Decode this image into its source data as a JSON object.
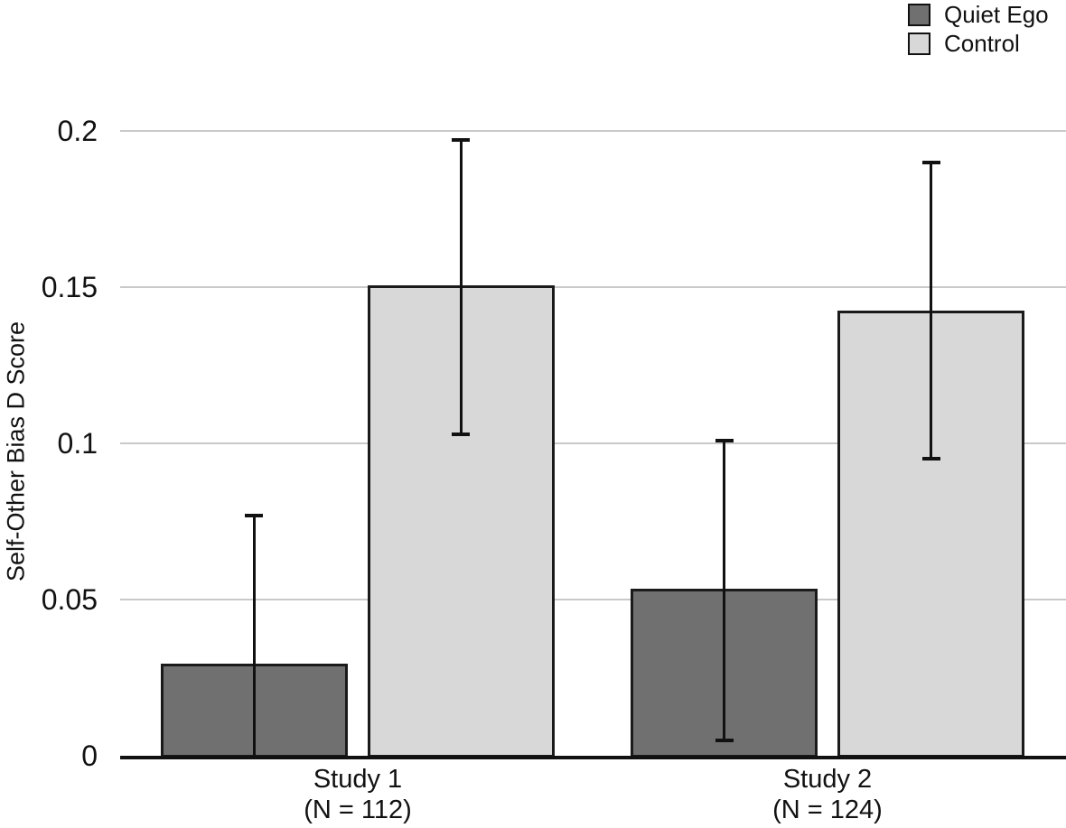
{
  "chart_data": {
    "type": "bar",
    "title": "",
    "xlabel": "",
    "ylabel": "Self-Other Bias D Score",
    "ylim": [
      0,
      0.2
    ],
    "grid": true,
    "legend_position": "top-right",
    "yticks": [
      {
        "value": 0,
        "label": "0"
      },
      {
        "value": 0.05,
        "label": "0.05"
      },
      {
        "value": 0.1,
        "label": "0.1"
      },
      {
        "value": 0.15,
        "label": "0.15"
      },
      {
        "value": 0.2,
        "label": "0.2"
      }
    ],
    "categories": [
      {
        "label": "Study 1",
        "sublabel": "(N = 112)"
      },
      {
        "label": "Study 2",
        "sublabel": "(N = 124)"
      }
    ],
    "series": [
      {
        "name": "Quiet Ego",
        "color": "#707070",
        "values": [
          0.029,
          0.053
        ],
        "error_high": [
          0.077,
          0.101
        ],
        "error_low": [
          0.0,
          0.005
        ],
        "error_low_cap_visible": [
          false,
          true
        ]
      },
      {
        "name": "Control",
        "color": "#d8d8d8",
        "values": [
          0.15,
          0.142
        ],
        "error_high": [
          0.197,
          0.19
        ],
        "error_low": [
          0.103,
          0.095
        ],
        "error_low_cap_visible": [
          true,
          true
        ]
      }
    ],
    "style": {
      "bar_border_color": "#1a1a1a",
      "error_bar_color": "#111111",
      "gridline_color": "#c9c9c9",
      "axis_line_color": "#111111",
      "background": "#ffffff"
    }
  }
}
